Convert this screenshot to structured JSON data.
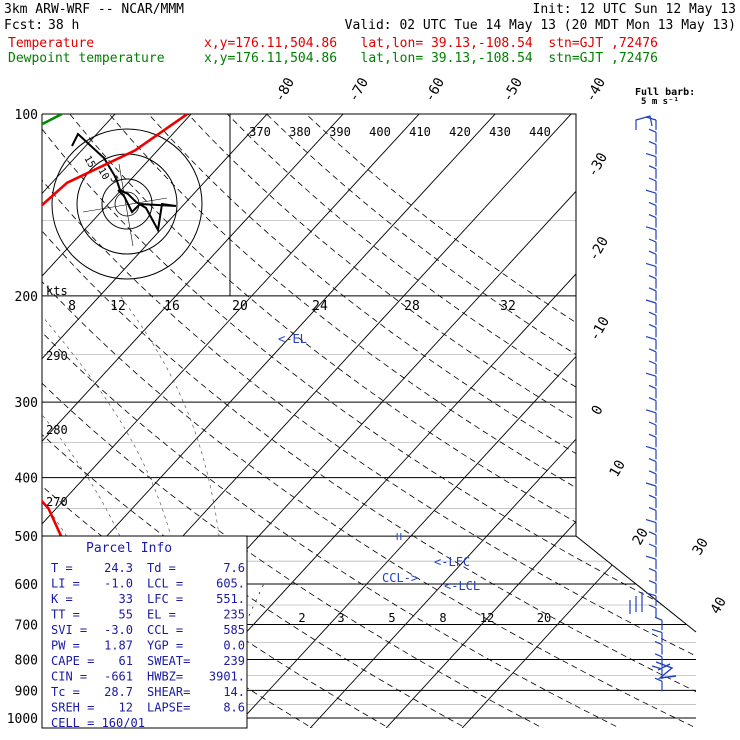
{
  "header": {
    "model": "3km ARW-WRF -- NCAR/MMM",
    "init": "Init: 12 UTC Sun 12 May 13",
    "fcst_label": "Fcst:",
    "fcst_value": "38 h",
    "valid": "Valid: 02 UTC Tue 14 May 13 (20 MDT Mon 13 May 13)",
    "temp_label": "Temperature",
    "dew_label": "Dewpoint temperature",
    "temp_info": "x,y=176.11,504.86   lat,lon= 39.13,-108.54  stn=GJT ,72476",
    "dew_info": "x,y=176.11,504.86   lat,lon= 39.13,-108.54  stn=GJT ,72476",
    "barb_label_1": "Full barb:",
    "barb_label_2": "5 m s⁻¹"
  },
  "chart_data": {
    "type": "skew-t",
    "y_axis": "pressure (hPa), logarithmic",
    "pressure_ticks": [
      100,
      200,
      300,
      400,
      500,
      600,
      700,
      800,
      900,
      1000
    ],
    "temperature_ticks_lower": [
      "-40",
      "-30",
      "-20",
      "-10",
      "0",
      "10",
      "20",
      "30",
      "40"
    ],
    "temperature_ticks_upper": [
      "-80",
      "-70",
      "-60",
      "-50"
    ],
    "theta_labels": [
      "370",
      "380",
      "390",
      "400",
      "410",
      "420",
      "430",
      "440"
    ],
    "theta_left_labels": [
      "290",
      "280",
      "270"
    ],
    "mixing_ratio_labels": [
      "2",
      "3",
      "5",
      "8",
      "12",
      "20"
    ],
    "hodograph_speed_labels": [
      "8",
      "12",
      "16",
      "20",
      "24",
      "28",
      "32"
    ],
    "hodograph_unit": "kts",
    "hodograph_ring_labels": [
      "5",
      "10",
      "15"
    ],
    "annotations": [
      "<-EL",
      "<-LFC",
      "<-LCL",
      "CCL->"
    ],
    "series": [
      {
        "name": "Temperature",
        "color": "#ee0000",
        "points": [
          {
            "p": 100,
            "t": -50.5
          },
          {
            "p": 115,
            "t": -53.0
          },
          {
            "p": 130,
            "t": -58.0
          },
          {
            "p": 150,
            "t": -59.0
          },
          {
            "p": 175,
            "t": -60.5
          },
          {
            "p": 200,
            "t": -60.0
          },
          {
            "p": 215,
            "t": -58.0
          },
          {
            "p": 250,
            "t": -50.7
          },
          {
            "p": 300,
            "t": -43.5
          },
          {
            "p": 350,
            "t": -35.6
          },
          {
            "p": 400,
            "t": -28.4
          },
          {
            "p": 450,
            "t": -21.0
          },
          {
            "p": 500,
            "t": -16.0
          },
          {
            "p": 550,
            "t": -9.5
          },
          {
            "p": 600,
            "t": -5.0
          },
          {
            "p": 650,
            "t": 1.0
          },
          {
            "p": 700,
            "t": 6.4
          },
          {
            "p": 750,
            "t": 12.0
          },
          {
            "p": 800,
            "t": 17.4
          },
          {
            "p": 850,
            "t": 24.3
          }
        ]
      },
      {
        "name": "Dewpoint temperature",
        "color": "#008800",
        "points": [
          {
            "p": 100,
            "t": -67.0
          },
          {
            "p": 115,
            "t": -72.0
          },
          {
            "p": 130,
            "t": -77.5
          },
          {
            "p": 150,
            "t": -83.0
          },
          {
            "p": 175,
            "t": -86.0
          },
          {
            "p": 200,
            "t": -83.0
          },
          {
            "p": 220,
            "t": -78.5
          },
          {
            "p": 250,
            "t": -70.0
          },
          {
            "p": 300,
            "t": -63.0
          },
          {
            "p": 330,
            "t": -59.0
          },
          {
            "p": 350,
            "t": -54.0
          },
          {
            "p": 380,
            "t": -45.0
          },
          {
            "p": 400,
            "t": -43.0
          },
          {
            "p": 450,
            "t": -33.0
          },
          {
            "p": 500,
            "t": -27.0
          },
          {
            "p": 550,
            "t": -21.0
          },
          {
            "p": 600,
            "t": -15.0
          },
          {
            "p": 650,
            "t": -9.0
          },
          {
            "p": 700,
            "t": -4.0
          },
          {
            "p": 750,
            "t": -2.0
          },
          {
            "p": 800,
            "t": -1.0
          },
          {
            "p": 850,
            "t": 7.6
          }
        ]
      }
    ],
    "grid": true
  },
  "parcel": {
    "title": "Parcel Info",
    "rows": [
      [
        "T  =",
        "24.3",
        "Td =",
        "7.6"
      ],
      [
        "LI =",
        "-1.0",
        "LCL =",
        "605."
      ],
      [
        "K  =",
        "33",
        "LFC =",
        "551."
      ],
      [
        "TT =",
        "55",
        "EL  =",
        "235"
      ],
      [
        "SVI =",
        "-3.0",
        "CCL =",
        "585"
      ],
      [
        "PW =",
        "1.87",
        "YGP =",
        "0.0"
      ],
      [
        "CAPE =",
        "61",
        "SWEAT=",
        "239"
      ],
      [
        "CIN =",
        "-661",
        "HWBZ=",
        "3901."
      ],
      [
        "Tc =",
        "28.7",
        "SHEAR=",
        "14."
      ],
      [
        "SREH =",
        "12",
        "LAPSE=",
        "8.6"
      ]
    ],
    "cell": "CELL = 160/01"
  }
}
